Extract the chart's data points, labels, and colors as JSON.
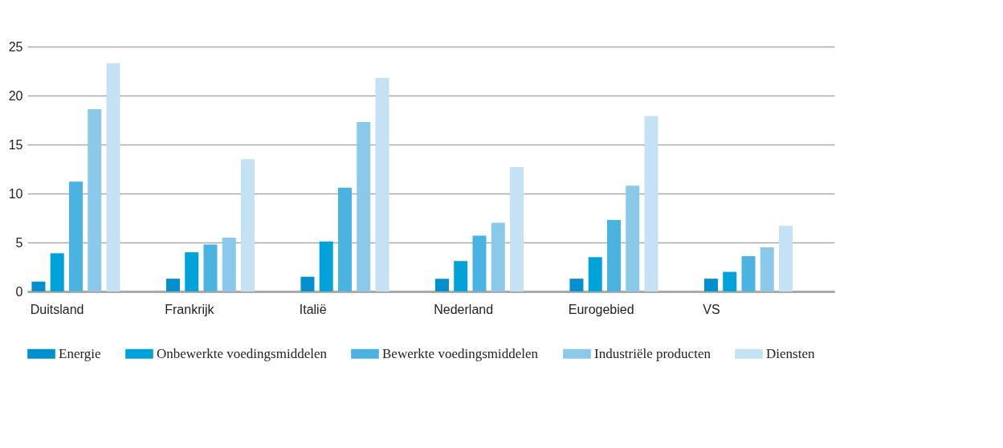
{
  "chart_data": {
    "type": "bar",
    "categories": [
      "Duitsland",
      "Frankrijk",
      "Italië",
      "Nederland",
      "Eurogebied",
      "VS"
    ],
    "series": [
      {
        "name": "Energie",
        "color": "#0090d0",
        "values": [
          1.0,
          1.3,
          1.5,
          1.3,
          1.3,
          1.3
        ]
      },
      {
        "name": "Onbewerkte voedingsmiddelen",
        "color": "#00a2da",
        "values": [
          3.9,
          4.0,
          5.1,
          3.1,
          3.5,
          2.0
        ]
      },
      {
        "name": "Bewerkte voedingsmiddelen",
        "color": "#4ab3e2",
        "values": [
          11.2,
          4.8,
          10.6,
          5.7,
          7.3,
          3.6
        ]
      },
      {
        "name": "Industriële producten",
        "color": "#8ac9ea",
        "values": [
          18.6,
          5.5,
          17.3,
          7.0,
          10.8,
          4.5
        ]
      },
      {
        "name": "Diensten",
        "color": "#c4e2f3",
        "values": [
          23.3,
          13.5,
          21.8,
          12.7,
          17.9,
          6.7
        ]
      }
    ],
    "ylim": [
      0,
      25
    ],
    "yticks": [
      0,
      5,
      10,
      15,
      20,
      25
    ],
    "grid": "y",
    "legend": "bottom"
  }
}
